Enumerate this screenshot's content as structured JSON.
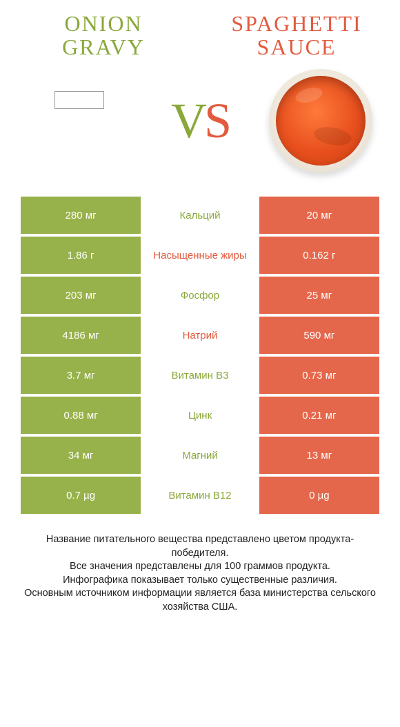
{
  "colors": {
    "green": "#97b24a",
    "green_text": "#8aa83a",
    "orange": "#e5674b",
    "orange_text": "#e25b3f",
    "background": "#ffffff"
  },
  "left_product": {
    "title": "Onion gravy"
  },
  "right_product": {
    "title": "Spaghetti sauce"
  },
  "vs": {
    "v": "V",
    "s": "S"
  },
  "rows": [
    {
      "left": "280 мг",
      "label": "Кальций",
      "right": "20 мг",
      "winner": "green"
    },
    {
      "left": "1.86 г",
      "label": "Насыщенные жиры",
      "right": "0.162 г",
      "winner": "orange"
    },
    {
      "left": "203 мг",
      "label": "Фосфор",
      "right": "25 мг",
      "winner": "green"
    },
    {
      "left": "4186 мг",
      "label": "Натрий",
      "right": "590 мг",
      "winner": "orange"
    },
    {
      "left": "3.7 мг",
      "label": "Витамин B3",
      "right": "0.73 мг",
      "winner": "green"
    },
    {
      "left": "0.88 мг",
      "label": "Цинк",
      "right": "0.21 мг",
      "winner": "green"
    },
    {
      "left": "34 мг",
      "label": "Магний",
      "right": "13 мг",
      "winner": "green"
    },
    {
      "left": "0.7 µg",
      "label": "Витамин B12",
      "right": "0 µg",
      "winner": "green"
    }
  ],
  "footer": {
    "line1": "Название питательного вещества представлено цветом продукта-победителя.",
    "line2": "Все значения представлены для 100 граммов продукта.",
    "line3": "Инфографика показывает только существенные различия.",
    "line4": "Основным источником информации является база министерства сельского хозяйства США."
  }
}
